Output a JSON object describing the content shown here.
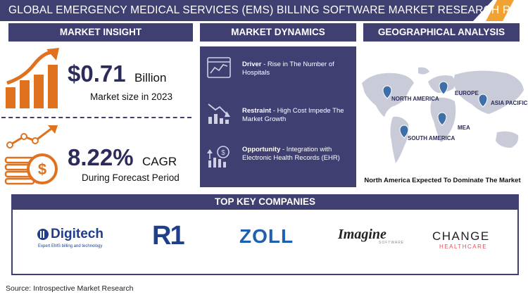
{
  "title": "GLOBAL EMERGENCY MEDICAL SERVICES (EMS) BILLING SOFTWARE  MARKET RESEARCH REPORT",
  "sections": {
    "insight": "MARKET INSIGHT",
    "dynamics": "MARKET DYNAMICS",
    "geo": "GEOGRAPHICAL ANALYSIS",
    "companies": "TOP KEY COMPANIES"
  },
  "insight": {
    "market_size_value": "$0.71",
    "market_size_unit": "Billion",
    "market_size_label": "Market size in 2023",
    "cagr_value": "8.22%",
    "cagr_unit": "CAGR",
    "cagr_label": "During Forecast Period"
  },
  "dynamics": {
    "driver_title": "Driver",
    "driver_text": " - Rise in The Number of Hospitals",
    "restraint_title": "Restraint",
    "restraint_text": " - High Cost Impede The Market Growth",
    "opportunity_title": "Opportunity",
    "opportunity_text": " - Integration with Electronic Health Records (EHR)"
  },
  "geo": {
    "regions": {
      "north_america": "NORTH AMERICA",
      "europe": "EUROPE",
      "asia_pacific": "ASIA PACIFIC",
      "mea": "MEA",
      "south_america": "SOUTH AMERICA"
    },
    "caption": "North America Expected To Dominate The Market"
  },
  "companies": {
    "digitech": "Digitech",
    "digitech_tagline": "Expert EMS billing and technology",
    "r1": "R1",
    "zoll": "ZOLL",
    "imagine": "Imagine",
    "imagine_sub": "SOFTWARE",
    "change": "CHANGE",
    "change_sub": "HEALTHCARE"
  },
  "source": "Source: Introspective Market Research",
  "colors": {
    "navy": "#3f3f72",
    "orange": "#e0711f",
    "blue_logo": "#1f3f8a"
  }
}
